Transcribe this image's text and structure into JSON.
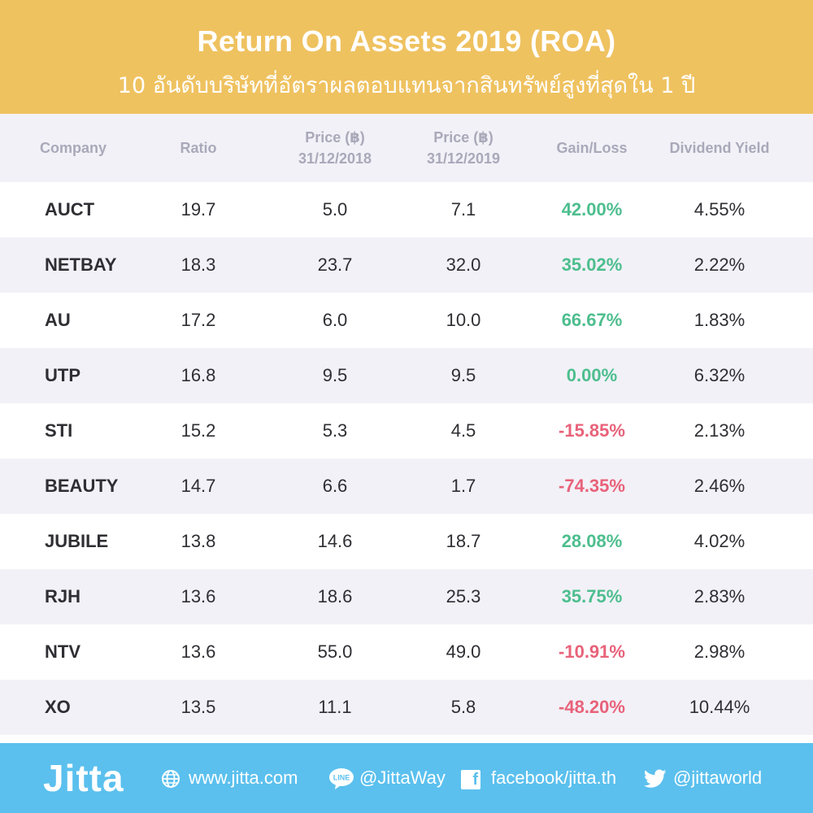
{
  "header": {
    "title": "Return On Assets 2019 (ROA)",
    "subtitle": "10 อันดับบริษัทที่อัตราผลตอบแทนจากสินทรัพย์สูงที่สุดใน 1 ปี"
  },
  "columns": {
    "company": "Company",
    "ratio": "Ratio",
    "price_2018_line1": "Price (฿)",
    "price_2018_line2": "31/12/2018",
    "price_2019_line1": "Price (฿)",
    "price_2019_line2": "31/12/2019",
    "gain_loss": "Gain/Loss",
    "dividend_yield": "Dividend Yield"
  },
  "rows": [
    {
      "company": "AUCT",
      "ratio": "19.7",
      "price_2018": "5.0",
      "price_2019": "7.1",
      "gain_loss": "42.00%",
      "dividend_yield": "4.55%"
    },
    {
      "company": "NETBAY",
      "ratio": "18.3",
      "price_2018": "23.7",
      "price_2019": "32.0",
      "gain_loss": "35.02%",
      "dividend_yield": "2.22%"
    },
    {
      "company": "AU",
      "ratio": "17.2",
      "price_2018": "6.0",
      "price_2019": "10.0",
      "gain_loss": "66.67%",
      "dividend_yield": "1.83%"
    },
    {
      "company": "UTP",
      "ratio": "16.8",
      "price_2018": "9.5",
      "price_2019": "9.5",
      "gain_loss": "0.00%",
      "dividend_yield": "6.32%"
    },
    {
      "company": "STI",
      "ratio": "15.2",
      "price_2018": "5.3",
      "price_2019": "4.5",
      "gain_loss": "-15.85%",
      "dividend_yield": "2.13%"
    },
    {
      "company": "BEAUTY",
      "ratio": "14.7",
      "price_2018": "6.6",
      "price_2019": "1.7",
      "gain_loss": "-74.35%",
      "dividend_yield": "2.46%"
    },
    {
      "company": "JUBILE",
      "ratio": "13.8",
      "price_2018": "14.6",
      "price_2019": "18.7",
      "gain_loss": "28.08%",
      "dividend_yield": "4.02%"
    },
    {
      "company": "RJH",
      "ratio": "13.6",
      "price_2018": "18.6",
      "price_2019": "25.3",
      "gain_loss": "35.75%",
      "dividend_yield": "2.83%"
    },
    {
      "company": "NTV",
      "ratio": "13.6",
      "price_2018": "55.0",
      "price_2019": "49.0",
      "gain_loss": "-10.91%",
      "dividend_yield": "2.98%"
    },
    {
      "company": "XO",
      "ratio": "13.5",
      "price_2018": "11.1",
      "price_2019": "5.8",
      "gain_loss": "-48.20%",
      "dividend_yield": "10.44%"
    }
  ],
  "footer": {
    "logo": "Jitta",
    "website": "www.jitta.com",
    "line_label": "LINE",
    "line_id": "@JittaWay",
    "facebook": "facebook/jitta.th",
    "twitter": "@jittaworld"
  },
  "colors": {
    "header_bg": "#EFC260",
    "footer_bg": "#5BC0EE",
    "gain_positive": "#4DBE8E",
    "gain_negative": "#E8627A",
    "row_alt_bg": "#F2F1F7"
  }
}
